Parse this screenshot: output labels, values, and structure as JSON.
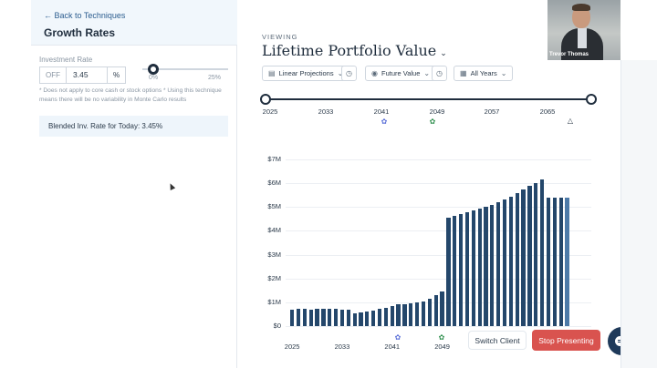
{
  "sidebar": {
    "back_label": "Back to Techniques",
    "title": "Growth Rates",
    "investment_rate_label": "Investment Rate",
    "off_label": "OFF",
    "rate_value": "3.45",
    "rate_unit": "%",
    "slider_min": "0%",
    "slider_max": "25%",
    "slider_value_fraction": 0.138,
    "note": "* Does not apply to core cash or stock options * Using this technique means there will be no variability in Monte Carlo results",
    "blended_text": "Blended Inv. Rate for Today: 3.45%"
  },
  "header": {
    "viewing_label": "VIEWING",
    "title": "Lifetime Portfolio Value"
  },
  "controls": {
    "projection_label": "Linear Projections",
    "value_label": "Future Value",
    "years_label": "All Years"
  },
  "timeline": {
    "labels": [
      "2025",
      "2033",
      "2041",
      "2049",
      "2057",
      "2065"
    ]
  },
  "buttons": {
    "switch_client": "Switch Client",
    "stop_presenting": "Stop Presenting"
  },
  "webcam": {
    "name": "Trevor Thomas"
  },
  "colors": {
    "bar": "#24476b",
    "bar_final": "#4d7aa8",
    "accent": "#d9534f",
    "navy": "#1f3a5a",
    "event_blue": "#5a6fd8",
    "event_green": "#2f8f4e"
  },
  "icons": {
    "back": "arrow-left-icon",
    "chart": "bar-chart-icon",
    "history": "clock-icon",
    "calendar": "calendar-icon",
    "event_a": "paw-icon",
    "event_b": "paw-icon",
    "end_marker": "triangle-icon",
    "chat": "chat-icon"
  },
  "chart_data": {
    "type": "bar",
    "ylabel_ticks": [
      "$0",
      "$1M",
      "$2M",
      "$3M",
      "$4M",
      "$5M",
      "$6M",
      "$7M"
    ],
    "ylim": [
      0,
      7
    ],
    "x_tick_labels": [
      "2025",
      "2033",
      "2041",
      "2049"
    ],
    "x": [
      2025,
      2026,
      2027,
      2028,
      2029,
      2030,
      2031,
      2032,
      2033,
      2034,
      2035,
      2036,
      2037,
      2038,
      2039,
      2040,
      2041,
      2042,
      2043,
      2044,
      2045,
      2046,
      2047,
      2048,
      2049,
      2050,
      2051,
      2052,
      2053,
      2054,
      2055,
      2056,
      2057,
      2058,
      2059,
      2060,
      2061,
      2062,
      2063,
      2064,
      2065,
      2066,
      2067,
      2068,
      2069
    ],
    "values": [
      0.7,
      0.71,
      0.71,
      0.7,
      0.72,
      0.72,
      0.71,
      0.72,
      0.7,
      0.67,
      0.55,
      0.58,
      0.62,
      0.66,
      0.72,
      0.76,
      0.85,
      0.9,
      0.93,
      0.96,
      1.0,
      1.05,
      1.15,
      1.3,
      1.45,
      4.55,
      4.62,
      4.7,
      4.78,
      4.85,
      4.95,
      5.03,
      5.1,
      5.2,
      5.3,
      5.45,
      5.6,
      5.75,
      5.9,
      6.0,
      6.15,
      5.4,
      5.4,
      5.4,
      5.4
    ]
  }
}
